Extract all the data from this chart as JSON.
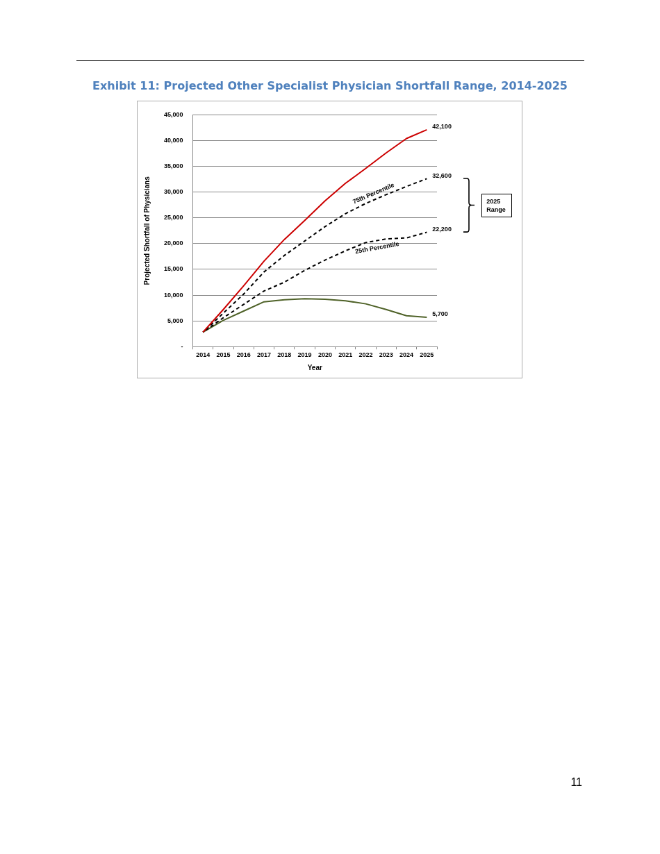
{
  "chart_data": {
    "type": "line",
    "title": "Exhibit 11: Projected Other Specialist Physician Shortfall Range, 2014-2025",
    "xlabel": "Year",
    "ylabel": "Projected Shortfall of Physicians",
    "categories": [
      "2014",
      "2015",
      "2016",
      "2017",
      "2018",
      "2019",
      "2020",
      "2021",
      "2022",
      "2023",
      "2024",
      "2025"
    ],
    "series": [
      {
        "color": "#cc0000",
        "line_style": "solid",
        "values": [
          2800,
          7200,
          11800,
          16600,
          20800,
          24500,
          28300,
          31700,
          34600,
          37600,
          40400,
          42100
        ],
        "value_labels": [
          null,
          null,
          null,
          null,
          null,
          null,
          null,
          null,
          null,
          null,
          null,
          "42,100"
        ]
      },
      {
        "name": "75th Percentile",
        "color": "#000000",
        "line_style": "dashed",
        "values": [
          2800,
          6500,
          10200,
          14500,
          17700,
          20500,
          23300,
          25800,
          27800,
          29500,
          31100,
          32600
        ],
        "value_labels": [
          null,
          null,
          null,
          null,
          null,
          null,
          null,
          null,
          null,
          null,
          null,
          "32,600"
        ]
      },
      {
        "name": "25th Percentile",
        "color": "#000000",
        "line_style": "dashed",
        "values": [
          2800,
          5600,
          8200,
          10800,
          12500,
          14800,
          16800,
          18600,
          20200,
          20900,
          21100,
          22200
        ],
        "value_labels": [
          null,
          null,
          null,
          null,
          null,
          null,
          null,
          null,
          null,
          null,
          null,
          "22,200"
        ]
      },
      {
        "color": "#4f6228",
        "line_style": "solid",
        "values": [
          2800,
          5100,
          6900,
          8700,
          9100,
          9300,
          9200,
          8900,
          8300,
          7200,
          6000,
          5700
        ],
        "value_labels": [
          null,
          null,
          null,
          null,
          null,
          null,
          null,
          null,
          null,
          null,
          null,
          "5,700"
        ]
      }
    ],
    "ylim": [
      0,
      45000
    ],
    "yticks": [
      {
        "value": 0,
        "label": "-"
      },
      {
        "value": 5000,
        "label": "5,000"
      },
      {
        "value": 10000,
        "label": "10,000"
      },
      {
        "value": 15000,
        "label": "15,000"
      },
      {
        "value": 20000,
        "label": "20,000"
      },
      {
        "value": 25000,
        "label": "25,000"
      },
      {
        "value": 30000,
        "label": "30,000"
      },
      {
        "value": 35000,
        "label": "35,000"
      },
      {
        "value": 40000,
        "label": "40,000"
      },
      {
        "value": 45000,
        "label": "45,000"
      }
    ],
    "grid": "y",
    "legend": false,
    "marker": "none",
    "annotations": [
      "2025 Range",
      "11"
    ]
  }
}
